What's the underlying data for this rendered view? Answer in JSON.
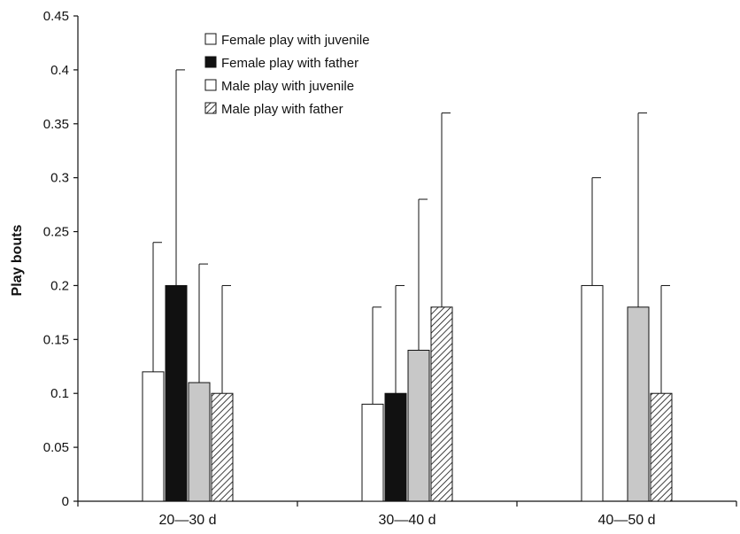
{
  "chart_data": {
    "type": "bar",
    "title": "",
    "xlabel": "",
    "ylabel": "Play bouts",
    "ylim": [
      0,
      0.45
    ],
    "yticks": [
      0,
      0.05,
      0.1,
      0.15,
      0.2,
      0.25,
      0.3,
      0.35,
      0.4,
      0.45
    ],
    "ytick_labels": [
      "0",
      "0.05",
      "0.1",
      "0.15",
      "0.2",
      "0.25",
      "0.3",
      "0.35",
      "0.4",
      "0.45"
    ],
    "categories": [
      "20—30 d",
      "30—40 d",
      "40—50 d"
    ],
    "grid": false,
    "legend_position": "top-center",
    "series": [
      {
        "name": "Female play with juvenile",
        "style": "white",
        "color": "#ffffff",
        "values": [
          0.12,
          0.09,
          0.2
        ],
        "error": [
          0.12,
          0.09,
          0.1
        ]
      },
      {
        "name": "Female play with father",
        "style": "black",
        "color": "#111111",
        "values": [
          0.2,
          0.1,
          0
        ],
        "error": [
          0.2,
          0.1,
          0
        ]
      },
      {
        "name": "Male play with juvenile",
        "style": "gray",
        "color": "#c8c8c8",
        "values": [
          0.11,
          0.14,
          0.18
        ],
        "error": [
          0.11,
          0.14,
          0.18
        ]
      },
      {
        "name": "Male play with father",
        "style": "hatched",
        "color": "#ffffff",
        "values": [
          0.1,
          0.18,
          0.1
        ],
        "error": [
          0.1,
          0.18,
          0.1
        ]
      }
    ]
  }
}
